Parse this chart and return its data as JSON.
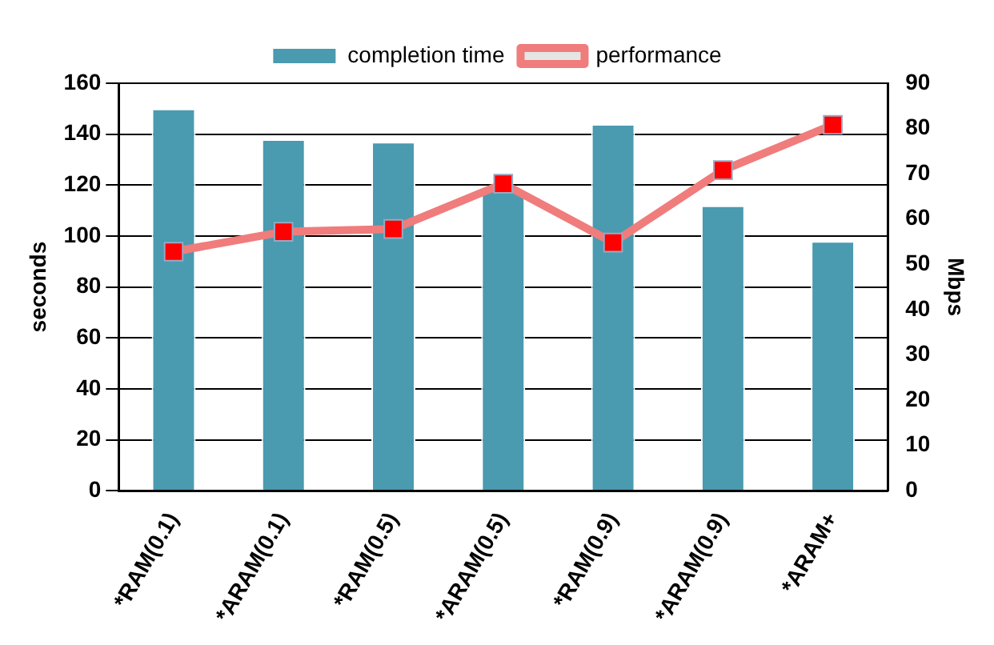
{
  "chart_data": {
    "type": "bar",
    "categories": [
      "*RAM(0.1)",
      "*ARAM(0.1)",
      "*RAM(0.5)",
      "*ARAM(0.5)",
      "*RAM(0.9)",
      "*ARAM(0.9)",
      "*ARAM+"
    ],
    "series": [
      {
        "name": "completion time",
        "color": "#4a9ab0",
        "values": [
          150,
          138,
          137,
          118,
          144,
          112,
          98
        ]
      },
      {
        "name": "performance",
        "type": "line",
        "axis": "y2",
        "color": "#f07c7c",
        "marker": "square",
        "values": [
          52.8,
          57.2,
          57.8,
          67.8,
          54.8,
          70.8,
          80.8
        ]
      }
    ],
    "ylabel": "seconds",
    "y2label": "Mbps",
    "ylim": [
      0,
      160
    ],
    "yticks": [
      0,
      20,
      40,
      60,
      80,
      100,
      120,
      140,
      160
    ],
    "y2lim": [
      0,
      90
    ],
    "y2ticks": [
      0,
      10,
      20,
      30,
      40,
      50,
      60,
      70,
      80,
      90
    ],
    "grid": "y",
    "legend": "top"
  }
}
